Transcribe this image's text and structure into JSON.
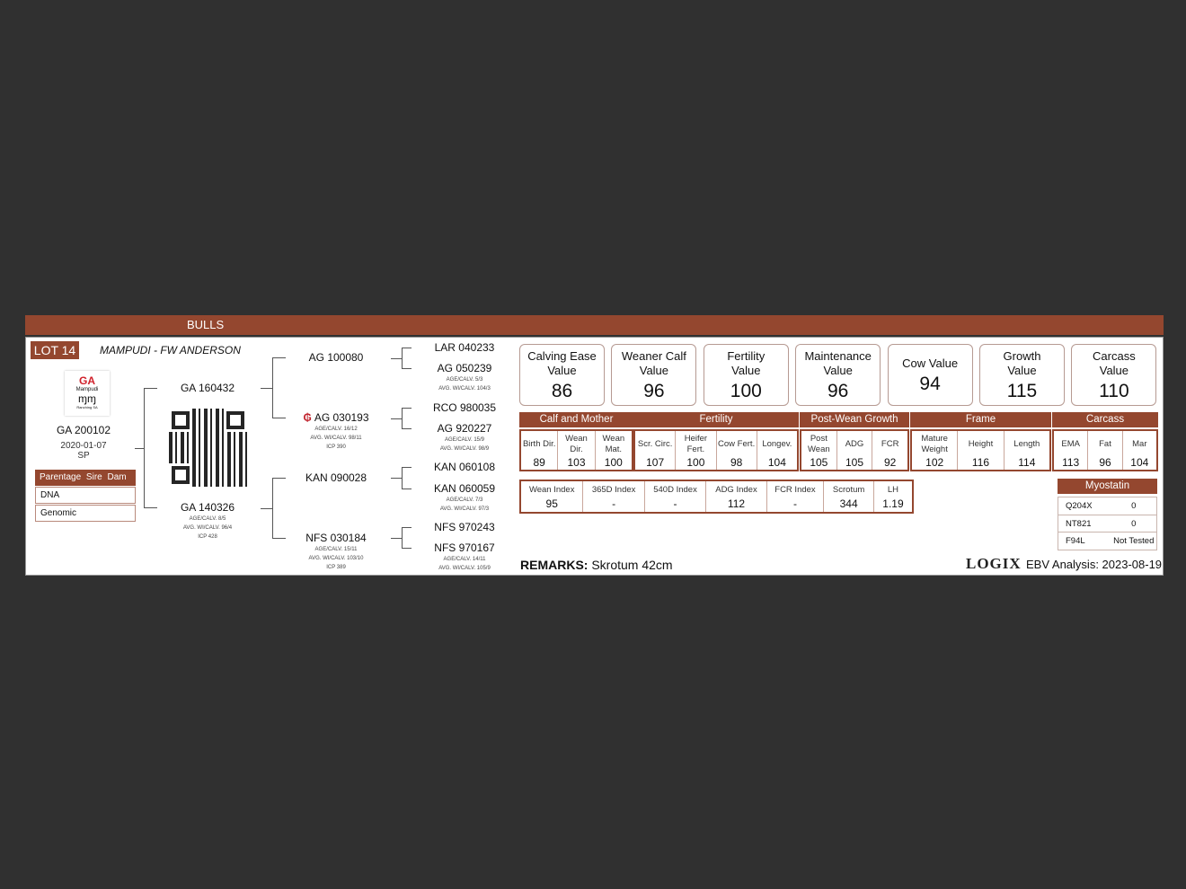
{
  "banner": {
    "title": "BULLS"
  },
  "lot": {
    "label": "LOT 14",
    "owner": "MAMPUDI - FW ANDERSON"
  },
  "logo": {
    "line1": "GA",
    "line2": "Mampudi",
    "line3": "Ranching SA"
  },
  "animal": {
    "id": "GA 200102",
    "dob": "2020-01-07",
    "code": "SP"
  },
  "parentage": {
    "header": "Parentage  Sire  Dam",
    "rows": [
      "DNA",
      "Genomic"
    ]
  },
  "pedigree": {
    "sire": {
      "id": "GA 160432"
    },
    "dam": {
      "id": "GA 140326",
      "lines": [
        "AGE/CALV. 8/5",
        "AVG. WI/CALV. 96/4",
        "ICP 428"
      ]
    },
    "ss": {
      "id": "AG 100080"
    },
    "sd": {
      "id": "AG 030193",
      "icon": "breeder-logo-icon",
      "lines": [
        "AGE/CALV. 16/12",
        "AVG. WI/CALV. 98/11",
        "ICP 390"
      ]
    },
    "ds": {
      "id": "KAN 090028"
    },
    "dd": {
      "id": "NFS 030184",
      "lines": [
        "AGE/CALV. 15/11",
        "AVG. WI/CALV. 103/10",
        "ICP 389"
      ]
    },
    "sss": {
      "id": "LAR 040233"
    },
    "ssd": {
      "id": "AG 050239",
      "lines": [
        "AGE/CALV. 5/3",
        "AVG. WI/CALV. 104/3"
      ]
    },
    "sds": {
      "id": "RCO 980035"
    },
    "sdd": {
      "id": "AG 920227",
      "lines": [
        "AGE/CALV. 15/9",
        "AVG. WI/CALV. 98/9"
      ]
    },
    "dss": {
      "id": "KAN 060108"
    },
    "dsd": {
      "id": "KAN 060059",
      "lines": [
        "AGE/CALV. 7/3",
        "AVG. WI/CALV. 97/3"
      ]
    },
    "dds": {
      "id": "NFS 970243"
    },
    "ddd": {
      "id": "NFS 970167",
      "lines": [
        "AGE/CALV. 14/11",
        "AVG. WI/CALV. 105/9"
      ]
    }
  },
  "value_cards": [
    {
      "l1": "Calving Ease",
      "l2": "Value",
      "value": "86"
    },
    {
      "l1": "Weaner Calf",
      "l2": "Value",
      "value": "96"
    },
    {
      "l1": "Fertility",
      "l2": "Value",
      "value": "100"
    },
    {
      "l1": "Maintenance",
      "l2": "Value",
      "value": "96"
    },
    {
      "l1": "Cow Value",
      "l2": "",
      "value": "94"
    },
    {
      "l1": "Growth",
      "l2": "Value",
      "value": "115"
    },
    {
      "l1": "Carcass",
      "l2": "Value",
      "value": "110"
    }
  ],
  "groups": [
    {
      "title": "Calf and Mother",
      "cols": [
        {
          "label": "Birth Dir.",
          "value": "89"
        },
        {
          "label": "Wean Dir.",
          "value": "103"
        },
        {
          "label": "Wean Mat.",
          "value": "100"
        }
      ]
    },
    {
      "title": "Fertility",
      "cols": [
        {
          "label": "Scr. Circ.",
          "value": "107"
        },
        {
          "label": "Heifer Fert.",
          "value": "100"
        },
        {
          "label": "Cow Fert.",
          "value": "98"
        },
        {
          "label": "Longev.",
          "value": "104"
        }
      ]
    },
    {
      "title": "Post-Wean Growth",
      "cols": [
        {
          "label": "Post Wean",
          "value": "105"
        },
        {
          "label": "ADG",
          "value": "105"
        },
        {
          "label": "FCR",
          "value": "92"
        }
      ]
    },
    {
      "title": "Frame",
      "cols": [
        {
          "label": "Mature Weight",
          "value": "102"
        },
        {
          "label": "Height",
          "value": "116"
        },
        {
          "label": "Length",
          "value": "114"
        }
      ]
    },
    {
      "title": "Carcass",
      "cols": [
        {
          "label": "EMA",
          "value": "113"
        },
        {
          "label": "Fat",
          "value": "96"
        },
        {
          "label": "Mar",
          "value": "104"
        }
      ]
    }
  ],
  "indexes": [
    {
      "label": "Wean Index",
      "value": "95"
    },
    {
      "label": "365D Index",
      "value": "-"
    },
    {
      "label": "540D Index",
      "value": "-"
    },
    {
      "label": "ADG Index",
      "value": "112"
    },
    {
      "label": "FCR Index",
      "value": "-"
    },
    {
      "label": "Scrotum",
      "value": "344"
    },
    {
      "label": "LH",
      "value": "1.19"
    }
  ],
  "myostatin": {
    "title": "Myostatin",
    "rows": [
      {
        "gene": "Q204X",
        "result": "0"
      },
      {
        "gene": "NT821",
        "result": "0"
      },
      {
        "gene": "F94L",
        "result": "Not Tested"
      }
    ]
  },
  "remarks": {
    "label": "REMARKS:",
    "text": "Skrotum 42cm"
  },
  "footer": {
    "brand": "LOGIX",
    "ebv": "EBV Analysis: 2023-08-19"
  },
  "colors": {
    "accent": "#94472f",
    "background": "#303030"
  }
}
